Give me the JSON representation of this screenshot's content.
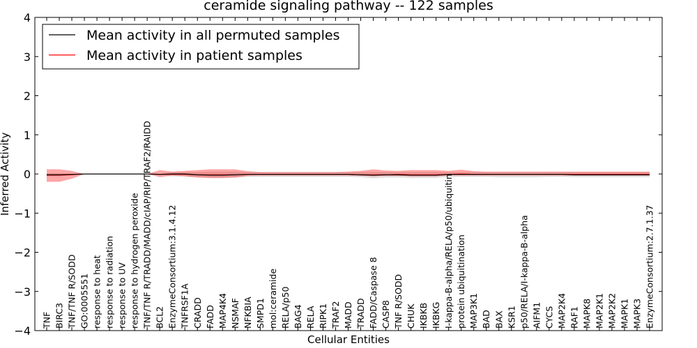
{
  "chart_data": {
    "type": "line",
    "title": "ceramide signaling pathway -- 122 samples",
    "xlabel": "Cellular Entities",
    "ylabel": "Inferred Activity",
    "ylim": [
      -4,
      4
    ],
    "yticks": [
      "4",
      "3",
      "2",
      "1",
      "0",
      "−1",
      "−2",
      "−3",
      "−4"
    ],
    "ytick_values": [
      4,
      3,
      2,
      1,
      0,
      -1,
      -2,
      -3,
      -4
    ],
    "categories": [
      "TNF",
      "BIRC3",
      "TNF/TNF R/SODD",
      "GO:0005551",
      "response to heat",
      "response to radiation",
      "response to UV",
      "response to hydrogen peroxide",
      "TNF/TNF R/TRADD/MADD/cIAP/RIP/TRAF2/RAIDD",
      "BCL2",
      "EnzymeConsortium:3.1.4.12",
      "TNFRSF1A",
      "CRADD",
      "FADD",
      "MAP4K4",
      "NSMAF",
      "NFKBIA",
      "SMPD1",
      "mol:ceramide",
      "RELA/p50",
      "BAG4",
      "RELA",
      "RIPK1",
      "TRAF2",
      "MADD",
      "TRADD",
      "FADD/Caspase 8",
      "CASP8",
      "TNF R/SODD",
      "CHUK",
      "IKBKB",
      "IKBKG",
      "I-kappa-B-alpha/RELA/p50/ubiquitin",
      "protein ubiquitination",
      "MAP3K1",
      "BAD",
      "BAX",
      "KSR1",
      "p50/RELA/I-kappa-B-alpha",
      "AIFM1",
      "CYCS",
      "MAP2K4",
      "RAF1",
      "MAPK8",
      "MAP2K1",
      "MAP2K2",
      "MAPK1",
      "MAPK3",
      "EnzymeConsortium:2.7.1.37"
    ],
    "series": [
      {
        "name": "Mean activity in all permuted samples",
        "color": "#000000",
        "values": [
          -0.02,
          -0.02,
          -0.01,
          0,
          0,
          0,
          0,
          0,
          0,
          -0.01,
          0,
          0,
          -0.02,
          -0.03,
          -0.03,
          -0.02,
          -0.01,
          -0.01,
          -0.01,
          -0.01,
          -0.01,
          -0.01,
          -0.01,
          -0.01,
          -0.01,
          -0.02,
          -0.03,
          -0.02,
          -0.02,
          -0.03,
          -0.03,
          -0.03,
          -0.01,
          -0.01,
          -0.01,
          -0.01,
          -0.01,
          -0.01,
          -0.01,
          -0.01,
          -0.01,
          -0.01,
          -0.02,
          -0.02,
          -0.02,
          -0.02,
          -0.02,
          -0.02,
          -0.02
        ],
        "band_upper": [
          0.02,
          0.02,
          0.01,
          0,
          0,
          0,
          0,
          0,
          0,
          0.01,
          0.05,
          0.05,
          0.05,
          0.06,
          0.06,
          0.06,
          0.05,
          0.05,
          0.05,
          0.05,
          0.05,
          0.05,
          0.05,
          0.05,
          0.05,
          0.05,
          0.05,
          0.05,
          0.05,
          0.05,
          0.05,
          0.05,
          0.05,
          0.05,
          0.05,
          0.05,
          0.05,
          0.05,
          0.05,
          0.05,
          0.05,
          0.05,
          0.05,
          0.05,
          0.05,
          0.05,
          0.05,
          0.05,
          0.05
        ],
        "band_lower": [
          -0.06,
          -0.06,
          -0.03,
          0,
          0,
          0,
          0,
          0,
          0,
          -0.04,
          -0.06,
          -0.06,
          -0.08,
          -0.1,
          -0.1,
          -0.09,
          -0.07,
          -0.07,
          -0.07,
          -0.07,
          -0.07,
          -0.07,
          -0.07,
          -0.07,
          -0.07,
          -0.08,
          -0.11,
          -0.09,
          -0.09,
          -0.1,
          -0.1,
          -0.1,
          -0.07,
          -0.07,
          -0.07,
          -0.07,
          -0.08,
          -0.08,
          -0.08,
          -0.08,
          -0.07,
          -0.07,
          -0.08,
          -0.08,
          -0.08,
          -0.08,
          -0.08,
          -0.08,
          -0.08
        ]
      },
      {
        "name": "Mean activity in patient samples",
        "color": "#ff0000",
        "values": [
          -0.03,
          -0.03,
          -0.02,
          0,
          0,
          0,
          0,
          0,
          0,
          -0.01,
          -0.01,
          -0.01,
          -0.02,
          -0.02,
          -0.02,
          -0.02,
          -0.01,
          -0.01,
          -0.01,
          -0.01,
          -0.01,
          -0.01,
          -0.01,
          -0.01,
          -0.01,
          -0.02,
          -0.02,
          -0.02,
          -0.01,
          -0.02,
          -0.02,
          -0.02,
          -0.01,
          0,
          -0.01,
          -0.01,
          -0.01,
          -0.01,
          -0.01,
          -0.01,
          -0.01,
          -0.01,
          -0.01,
          -0.01,
          -0.01,
          -0.01,
          -0.01,
          -0.01,
          -0.01
        ],
        "band_upper": [
          0.12,
          0.12,
          0.08,
          0,
          0,
          0,
          0,
          0,
          0,
          0.1,
          0.06,
          0.08,
          0.1,
          0.12,
          0.12,
          0.12,
          0.07,
          0.05,
          0.05,
          0.05,
          0.05,
          0.05,
          0.05,
          0.05,
          0.06,
          0.08,
          0.12,
          0.09,
          0.08,
          0.1,
          0.1,
          0.1,
          0.08,
          0.11,
          0.07,
          0.06,
          0.06,
          0.06,
          0.06,
          0.06,
          0.06,
          0.06,
          0.06,
          0.06,
          0.06,
          0.06,
          0.06,
          0.06,
          0.06
        ],
        "band_lower": [
          -0.2,
          -0.2,
          -0.12,
          0,
          0,
          0,
          0,
          0,
          0,
          -0.08,
          -0.04,
          -0.06,
          -0.09,
          -0.1,
          -0.1,
          -0.09,
          -0.05,
          -0.04,
          -0.04,
          -0.04,
          -0.04,
          -0.04,
          -0.04,
          -0.04,
          -0.04,
          -0.05,
          -0.06,
          -0.05,
          -0.05,
          -0.06,
          -0.06,
          -0.06,
          -0.04,
          -0.04,
          -0.04,
          -0.04,
          -0.04,
          -0.04,
          -0.04,
          -0.04,
          -0.04,
          -0.04,
          -0.04,
          -0.04,
          -0.04,
          -0.04,
          -0.04,
          -0.04,
          -0.04
        ]
      }
    ],
    "legend_position": "top-left",
    "grid": false
  }
}
